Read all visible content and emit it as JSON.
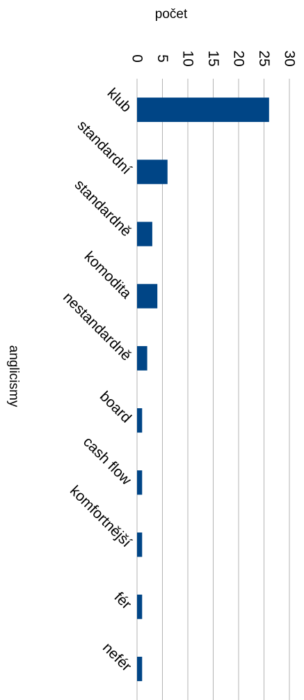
{
  "chart_data": {
    "type": "bar",
    "orientation": "horizontal",
    "categories": [
      "klub",
      "standardní",
      "standardně",
      "komodita",
      "nestandardně",
      "board",
      "cash flow",
      "komfortnější",
      "fér",
      "nefér"
    ],
    "values": [
      26,
      6,
      3,
      4,
      2,
      1,
      1,
      1,
      1,
      1
    ],
    "title": "",
    "xlabel": "počet",
    "ylabel": "anglicismy",
    "xlim": [
      0,
      30
    ],
    "ticks": [
      "0",
      "5",
      "10",
      "15",
      "20",
      "25",
      "30"
    ],
    "tick_values": [
      0,
      5,
      10,
      15,
      20,
      25,
      30
    ],
    "grid": true,
    "legend": "none",
    "colors": {
      "bar": "#004586",
      "grid": "#b3b3b3",
      "axis": "#b3b3b3"
    }
  }
}
